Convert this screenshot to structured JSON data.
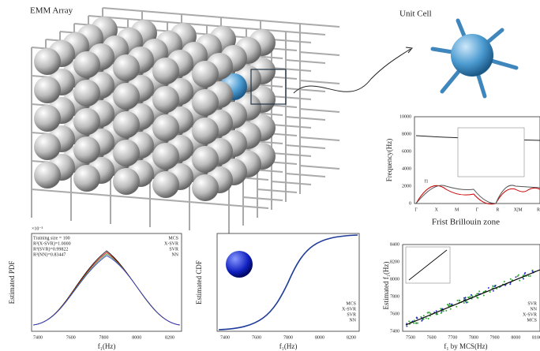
{
  "array_panel": {
    "title": "EMM Array"
  },
  "unit_panel": {
    "title": "Unit Cell"
  },
  "band_panel": {
    "y_label": "Frequency(Hz)",
    "x_label": "Frist Brillouin zone",
    "curve_label": "f1",
    "y_ticks": [
      "10000",
      "8000",
      "6000",
      "4000",
      "2000",
      "0"
    ],
    "x_ticks": [
      "Γ",
      "X",
      "M",
      "Γ",
      "R",
      "X|M",
      "R"
    ]
  },
  "pdf_panel": {
    "y_label": "Estimated PDF",
    "x_label": "f₁(Hz)",
    "scale": "×10⁻³",
    "notes": [
      "Training size = 100",
      "R²(X-SVR)=1.0000",
      "R²(SVR)=0.99822",
      "R²(NN)=0.83447"
    ],
    "legend": [
      "MCS",
      "X-SVR",
      "SVR",
      "NN"
    ],
    "x_ticks": [
      "7400",
      "7600",
      "7800",
      "8000",
      "8200"
    ]
  },
  "cdf_panel": {
    "y_label": "Estimated CDF",
    "x_label": "f₁(Hz)",
    "legend": [
      "MCS",
      "X-SVR",
      "SVR",
      "NN"
    ],
    "x_ticks": [
      "7400",
      "7600",
      "7800",
      "8000",
      "8200"
    ]
  },
  "scatter_panel": {
    "y_label": "Estimated f₁(Hz)",
    "x_label": "f₁ by MCS(Hz)",
    "legend": [
      "SVR",
      "NN",
      "X-SVR",
      "MCS"
    ],
    "y_ticks": [
      "8400",
      "8200",
      "8000",
      "7800",
      "7600",
      "7400"
    ],
    "x_ticks": [
      "7500",
      "7600",
      "7700",
      "7800",
      "7900",
      "8000",
      "8100"
    ]
  }
}
